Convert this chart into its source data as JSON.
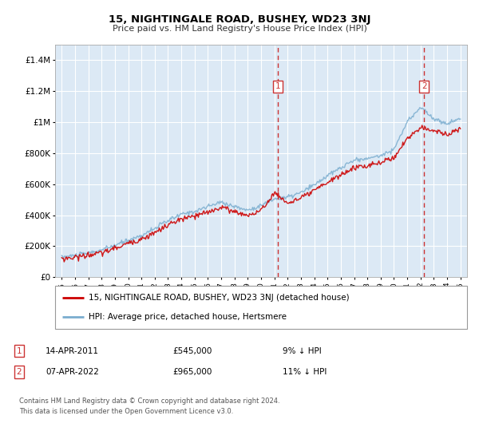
{
  "title": "15, NIGHTINGALE ROAD, BUSHEY, WD23 3NJ",
  "subtitle": "Price paid vs. HM Land Registry's House Price Index (HPI)",
  "legend_line1": "15, NIGHTINGALE ROAD, BUSHEY, WD23 3NJ (detached house)",
  "legend_line2": "HPI: Average price, detached house, Hertsmere",
  "footer": "Contains HM Land Registry data © Crown copyright and database right 2024.\nThis data is licensed under the Open Government Licence v3.0.",
  "annotation1_date": "14-APR-2011",
  "annotation1_price": "£545,000",
  "annotation1_hpi": "9% ↓ HPI",
  "annotation1_year": 2011.28,
  "annotation2_date": "07-APR-2022",
  "annotation2_price": "£965,000",
  "annotation2_hpi": "11% ↓ HPI",
  "annotation2_year": 2022.27,
  "xlim": [
    1994.5,
    2025.5
  ],
  "ylim": [
    0,
    1500000
  ],
  "bg_color": "#dce9f5",
  "grid_color": "#ffffff",
  "red_color": "#cc0000",
  "blue_color": "#7aadcf",
  "marker_box_color": "#cc3333"
}
